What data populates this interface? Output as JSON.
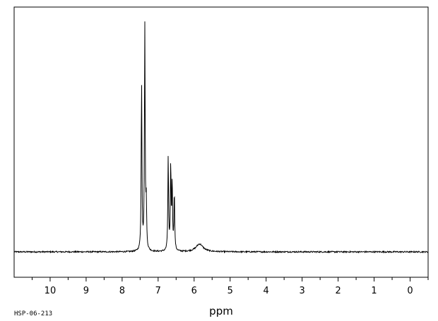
{
  "sample_id": "HSP-06-213",
  "chart_data": {
    "type": "line",
    "title": "",
    "xlabel": "ppm",
    "ylabel": "",
    "xlim": [
      11.0,
      -0.5
    ],
    "x_reversed": true,
    "ylim": [
      -0.12,
      1.0
    ],
    "grid": false,
    "legend": "none",
    "x_ticks": [
      "10",
      "9",
      "8",
      "7",
      "6",
      "5",
      "4",
      "3",
      "2",
      "1",
      "0"
    ],
    "peaks": [
      {
        "ppm": 7.46,
        "intensity": 0.75
      },
      {
        "ppm": 7.37,
        "intensity": 1.0
      },
      {
        "ppm": 7.33,
        "intensity": 0.2
      },
      {
        "ppm": 6.72,
        "intensity": 0.42
      },
      {
        "ppm": 6.65,
        "intensity": 0.38
      },
      {
        "ppm": 6.61,
        "intensity": 0.3
      },
      {
        "ppm": 6.55,
        "intensity": 0.26
      },
      {
        "ppm": 5.85,
        "intensity": 0.035
      }
    ],
    "baseline": 0.0,
    "colors": {
      "line": "#000000",
      "frame": "#000000",
      "background": "#ffffff"
    }
  }
}
